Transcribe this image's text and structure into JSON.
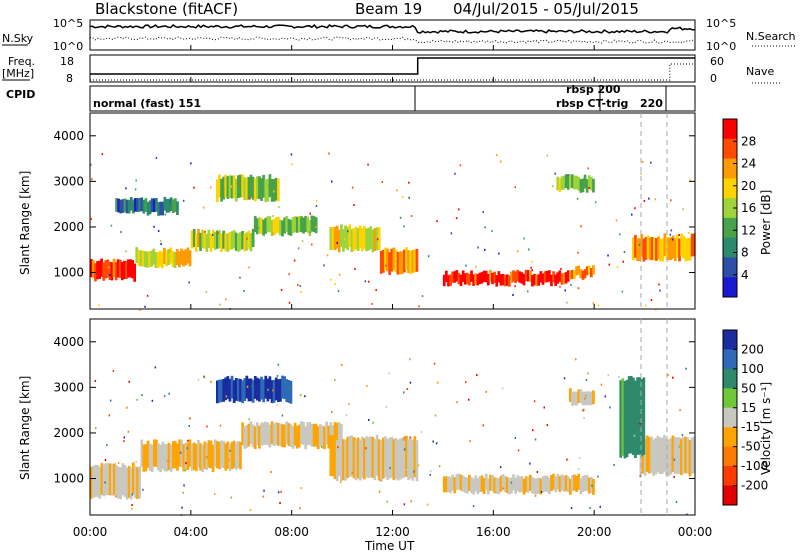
{
  "header": {
    "station": "Blackstone (fitACF)",
    "beam": "Beam 19",
    "dates": "04/Jul/2015 - 05/Jul/2015"
  },
  "top_panels": {
    "nsky_label": "N.Sky",
    "nsearch_label": "N.Search",
    "nsky_ticks": [
      "10^5",
      "10^0"
    ],
    "nsearch_ticks": [
      "10^5",
      "10^0"
    ],
    "freq_label": "Freq.",
    "freq_unit": "[MHz]",
    "freq_ticks": [
      "18",
      "8"
    ],
    "nave_label": "Nave",
    "nave_ticks": [
      "60",
      "0"
    ],
    "cpid_label": "CPID",
    "cpid_modes": [
      "normal (fast) 151",
      "rbsp 200",
      "rbsp CT-trig",
      "220"
    ]
  },
  "colorbars": {
    "power": {
      "label": "Power [dB]",
      "ticks": [
        "28",
        "24",
        "20",
        "16",
        "12",
        "8",
        "4"
      ],
      "colors": [
        "#ff0000",
        "#ff4a00",
        "#ff9a00",
        "#ffd200",
        "#9dd43c",
        "#47a24a",
        "#2b8a6e",
        "#2e4fa8",
        "#1a1ad0"
      ]
    },
    "velocity": {
      "label": "Velocity [m s⁻¹]",
      "ticks": [
        "200",
        "100",
        "50",
        "15",
        "-15",
        "-50",
        "-100",
        "-200"
      ],
      "colors": [
        "#1a2da0",
        "#2e6ab8",
        "#2e8a6a",
        "#6fc83a",
        "#c8c8c0",
        "#ffa400",
        "#ff7a00",
        "#ff3a00",
        "#e00000"
      ]
    }
  },
  "axes": {
    "ylabel": "Slant Range [km]",
    "yticks": [
      "4000",
      "3000",
      "2000",
      "1000"
    ],
    "xticks": [
      "00:00",
      "04:00",
      "08:00",
      "12:00",
      "16:00",
      "20:00",
      "00:00"
    ],
    "xlabel": "Time UT"
  },
  "chart_data": [
    {
      "type": "heatmap",
      "name": "Power",
      "x_range_hours": [
        0,
        24
      ],
      "ylim": [
        200,
        4500
      ],
      "blobs": [
        {
          "t0": 0.0,
          "t1": 1.8,
          "r0": 850,
          "r1": 1250,
          "level": 0.95
        },
        {
          "t0": 1.8,
          "t1": 4.0,
          "r0": 1150,
          "r1": 1500,
          "level": 0.65
        },
        {
          "t0": 4.0,
          "t1": 6.5,
          "r0": 1500,
          "r1": 1900,
          "level": 0.55
        },
        {
          "t0": 6.5,
          "t1": 9.0,
          "r0": 1850,
          "r1": 2200,
          "level": 0.45
        },
        {
          "t0": 9.5,
          "t1": 11.5,
          "r0": 1500,
          "r1": 2000,
          "level": 0.6
        },
        {
          "t0": 11.5,
          "t1": 13.0,
          "r0": 1000,
          "r1": 1500,
          "level": 0.75
        },
        {
          "t0": 14.0,
          "t1": 19.0,
          "r0": 750,
          "r1": 1000,
          "level": 0.95
        },
        {
          "t0": 19.0,
          "t1": 20.0,
          "r0": 900,
          "r1": 1100,
          "level": 0.8
        },
        {
          "t0": 5.0,
          "t1": 7.5,
          "r0": 2600,
          "r1": 3100,
          "level": 0.5
        },
        {
          "t0": 18.5,
          "t1": 20.0,
          "r0": 2800,
          "r1": 3100,
          "level": 0.45
        },
        {
          "t0": 1.0,
          "t1": 3.5,
          "r0": 2300,
          "r1": 2600,
          "level": 0.2
        },
        {
          "t0": 21.5,
          "t1": 24.0,
          "r0": 1300,
          "r1": 1800,
          "level": 0.75
        }
      ]
    },
    {
      "type": "heatmap",
      "name": "Velocity",
      "x_range_hours": [
        0,
        24
      ],
      "ylim": [
        200,
        4500
      ],
      "blobs": [
        {
          "t0": 0.0,
          "t1": 2.0,
          "r0": 600,
          "r1": 1300,
          "level": -0.1
        },
        {
          "t0": 2.0,
          "t1": 6.0,
          "r0": 1200,
          "r1": 1800,
          "level": -0.1
        },
        {
          "t0": 6.0,
          "t1": 10.0,
          "r0": 1700,
          "r1": 2200,
          "level": -0.1
        },
        {
          "t0": 9.5,
          "t1": 13.0,
          "r0": 1000,
          "r1": 1900,
          "level": -0.1
        },
        {
          "t0": 14.0,
          "t1": 20.0,
          "r0": 700,
          "r1": 1050,
          "level": -0.1
        },
        {
          "t0": 5.0,
          "t1": 8.0,
          "r0": 2700,
          "r1": 3200,
          "level": 0.9
        },
        {
          "t0": 21.8,
          "t1": 24.0,
          "r0": 1100,
          "r1": 1900,
          "level": -0.1
        },
        {
          "t0": 21.0,
          "t1": 22.0,
          "r0": 1500,
          "r1": 3200,
          "level": 0.45
        },
        {
          "t0": 19.0,
          "t1": 20.0,
          "r0": 2650,
          "r1": 2950,
          "level": -0.1
        }
      ]
    }
  ]
}
